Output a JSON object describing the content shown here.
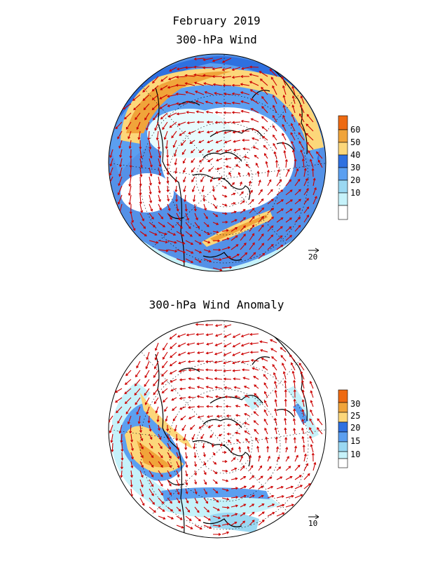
{
  "title": "February 2019",
  "panels": [
    {
      "title": "300-hPa Wind",
      "colorbar": {
        "labels": [
          "10",
          "20",
          "30",
          "40",
          "50",
          "60"
        ],
        "colors": [
          "#ffffff",
          "#c6f2fa",
          "#9ad8f2",
          "#5b9ff0",
          "#2e70e0",
          "#fcd77a",
          "#f0a43a",
          "#ee6a12"
        ]
      },
      "reference_vector_label": "20"
    },
    {
      "title": "300-hPa Wind Anomaly",
      "colorbar": {
        "labels": [
          "10",
          "15",
          "20",
          "25",
          "30"
        ],
        "colors": [
          "#ffffff",
          "#c6f2fa",
          "#9ad8f2",
          "#5b9ff0",
          "#2e70e0",
          "#fcd77a",
          "#f0a43a",
          "#ee6a12"
        ]
      },
      "reference_vector_label": "10"
    }
  ],
  "style": {
    "arrow_color": "#cc0000",
    "coast_color": "#000000"
  }
}
